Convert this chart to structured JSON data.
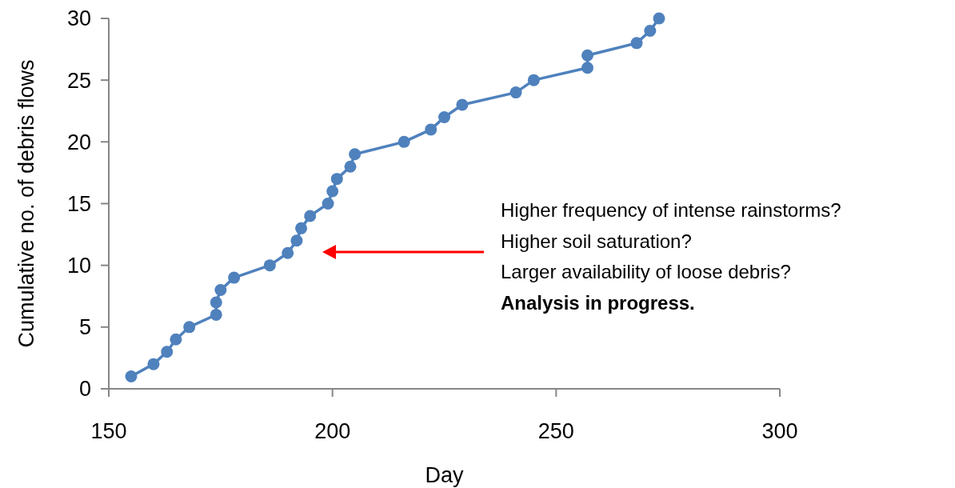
{
  "chart_data": {
    "type": "line",
    "xlabel": "Day",
    "ylabel": "Cumulative no. of debris flows",
    "x": [
      155,
      160,
      163,
      165,
      168,
      174,
      174,
      175,
      178,
      186,
      190,
      192,
      193,
      195,
      199,
      200,
      201,
      204,
      205,
      216,
      222,
      225,
      229,
      241,
      245,
      257,
      257,
      268,
      271,
      273
    ],
    "series": [
      {
        "color": "#4f81bd",
        "values": [
          1,
          2,
          3,
          4,
          5,
          6,
          7,
          8,
          9,
          10,
          11,
          12,
          13,
          14,
          15,
          16,
          17,
          18,
          19,
          20,
          21,
          22,
          23,
          24,
          25,
          26,
          27,
          28,
          29,
          30
        ]
      }
    ],
    "xlim": [
      150,
      300
    ],
    "xticks": [
      150,
      200,
      250,
      300
    ],
    "ylim": [
      0,
      30
    ],
    "yticks": [
      0,
      5,
      10,
      15,
      20,
      25,
      30
    ],
    "marker": "circle",
    "line_style": "solid",
    "grid": false,
    "annotations": [
      "Higher frequency of intense rainstorms?",
      "Higher soil saturation?",
      "Larger availability of loose debris?",
      "Analysis in progress."
    ]
  }
}
